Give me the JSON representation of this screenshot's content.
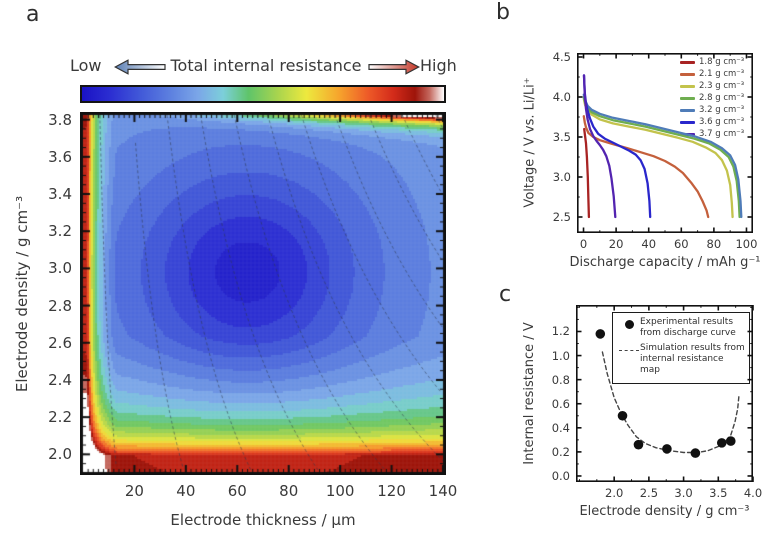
{
  "panel_letters": {
    "a": "a",
    "b": "b",
    "c": "c"
  },
  "colorbar": {
    "low_label": "Low",
    "title": "Total internal resistance",
    "high_label": "High"
  },
  "chart_data": [
    {
      "id": "a",
      "type": "heatmap",
      "xlabel": "Electrode thickness / μm",
      "ylabel": "Electrode density / g cm⁻³",
      "xlim": [
        0,
        140
      ],
      "ylim": [
        1.905,
        3.825
      ],
      "x_ticks": [
        "20",
        "40",
        "60",
        "80",
        "100",
        "120",
        "140"
      ],
      "y_ticks": [
        "3.8",
        "3.6",
        "3.4",
        "3.2",
        "3.0",
        "2.8",
        "2.6",
        "2.4",
        "2.2",
        "2.0"
      ],
      "x_minor_step": 2,
      "y_minor_step": 0.05,
      "value_meaning": "total internal resistance (Low = blue, High = white/red)",
      "optimum_region": {
        "thickness_um": 65,
        "density_g_cm3": 3.0
      },
      "colormap_stops": [
        [
          0.0,
          "#1a12c4"
        ],
        [
          0.08,
          "#2c2fd2"
        ],
        [
          0.16,
          "#4158d8"
        ],
        [
          0.25,
          "#5f83e0"
        ],
        [
          0.32,
          "#7ba6e8"
        ],
        [
          0.39,
          "#7ccfda"
        ],
        [
          0.46,
          "#5fc46a"
        ],
        [
          0.54,
          "#a8d44e"
        ],
        [
          0.62,
          "#ede93e"
        ],
        [
          0.71,
          "#f6a42c"
        ],
        [
          0.79,
          "#ee5a28"
        ],
        [
          0.86,
          "#d32b1a"
        ],
        [
          0.92,
          "#9e140a"
        ],
        [
          0.96,
          "#c4685e"
        ],
        [
          1.0,
          "#ffffff"
        ]
      ],
      "field_model": {
        "base": 0.32,
        "dips": [
          {
            "amp": 0.13,
            "cx": 64,
            "cy": 2.98,
            "sx": 55,
            "sy": 0.75
          },
          {
            "amp": 0.15,
            "cx": 64,
            "cy": 2.98,
            "sx": 26,
            "sy": 0.33
          }
        ],
        "wall_left": {
          "a": 2.6,
          "b": 1.5,
          "c": 0.18,
          "cap": 0.62
        },
        "wall_bottom": {
          "a": 0.11,
          "d0": 1.85,
          "c": 0.14,
          "cap": 0.62
        },
        "top_right": {
          "amp": 0.9,
          "power": 2,
          "decay": 0.04,
          "d_ref": 3.82
        },
        "quant": 0.04
      },
      "iso_lines": {
        "style": "dashed",
        "products_um_gcm3": [
          25,
          75,
          125,
          175,
          225,
          275,
          325,
          375,
          425,
          475,
          525
        ]
      }
    },
    {
      "id": "b",
      "type": "line",
      "xlabel": "Discharge capacity / mAh g⁻¹",
      "ylabel": "Voltage / V vs. Li/Li⁺",
      "xlim": [
        -4,
        104
      ],
      "ylim": [
        2.3,
        4.55
      ],
      "x_ticks": [
        "0",
        "20",
        "40",
        "60",
        "80",
        "100"
      ],
      "y_ticks": [
        "2.5",
        "3.0",
        "3.5",
        "4.0",
        "4.5"
      ],
      "x_minor_step": 10,
      "y_minor_step": 0.25,
      "series": [
        {
          "name": "1.8 g cm⁻³",
          "color": "#a82323",
          "points": [
            [
              0.4,
              3.6
            ],
            [
              0.9,
              3.52
            ],
            [
              1.5,
              3.42
            ],
            [
              2.1,
              3.25
            ],
            [
              2.6,
              3.0
            ],
            [
              3.0,
              2.72
            ],
            [
              3.3,
              2.5
            ]
          ]
        },
        {
          "name": "2.1 g cm⁻³",
          "color": "#c4603c",
          "points": [
            [
              0.2,
              3.76
            ],
            [
              0.8,
              3.68
            ],
            [
              1.5,
              3.62
            ],
            [
              3,
              3.55
            ],
            [
              6,
              3.5
            ],
            [
              10,
              3.46
            ],
            [
              15,
              3.43
            ],
            [
              20,
              3.4
            ],
            [
              27,
              3.36
            ],
            [
              35,
              3.31
            ],
            [
              43,
              3.26
            ],
            [
              50,
              3.2
            ],
            [
              56,
              3.13
            ],
            [
              61,
              3.05
            ],
            [
              66,
              2.93
            ],
            [
              70,
              2.82
            ],
            [
              73,
              2.7
            ],
            [
              75.5,
              2.58
            ],
            [
              76.5,
              2.5
            ]
          ]
        },
        {
          "name": "2.3 g cm⁻³",
          "color": "#c3c34c",
          "points": [
            [
              0.2,
              3.98
            ],
            [
              1,
              3.9
            ],
            [
              2.5,
              3.83
            ],
            [
              5,
              3.78
            ],
            [
              10,
              3.72
            ],
            [
              18,
              3.67
            ],
            [
              28,
              3.63
            ],
            [
              38,
              3.59
            ],
            [
              48,
              3.54
            ],
            [
              58,
              3.49
            ],
            [
              67,
              3.44
            ],
            [
              75,
              3.37
            ],
            [
              81,
              3.3
            ],
            [
              85,
              3.21
            ],
            [
              88,
              3.08
            ],
            [
              90,
              2.9
            ],
            [
              91,
              2.68
            ],
            [
              91.5,
              2.5
            ]
          ]
        },
        {
          "name": "2.8 g cm⁻³",
          "color": "#6fae50",
          "points": [
            [
              0.2,
              4.0
            ],
            [
              1,
              3.93
            ],
            [
              2.5,
              3.86
            ],
            [
              5,
              3.81
            ],
            [
              10,
              3.76
            ],
            [
              18,
              3.71
            ],
            [
              28,
              3.67
            ],
            [
              38,
              3.63
            ],
            [
              48,
              3.58
            ],
            [
              58,
              3.53
            ],
            [
              68,
              3.48
            ],
            [
              77,
              3.42
            ],
            [
              84,
              3.34
            ],
            [
              89,
              3.25
            ],
            [
              92,
              3.13
            ],
            [
              94,
              2.95
            ],
            [
              95.3,
              2.7
            ],
            [
              95.8,
              2.5
            ]
          ]
        },
        {
          "name": "3.2 g cm⁻³",
          "color": "#4f7cb8",
          "points": [
            [
              0.2,
              4.03
            ],
            [
              1,
              3.96
            ],
            [
              2.5,
              3.89
            ],
            [
              5,
              3.84
            ],
            [
              10,
              3.79
            ],
            [
              18,
              3.74
            ],
            [
              28,
              3.7
            ],
            [
              38,
              3.66
            ],
            [
              48,
              3.61
            ],
            [
              58,
              3.56
            ],
            [
              68,
              3.51
            ],
            [
              78,
              3.44
            ],
            [
              85,
              3.36
            ],
            [
              90,
              3.27
            ],
            [
              93,
              3.15
            ],
            [
              95,
              2.97
            ],
            [
              96.3,
              2.7
            ],
            [
              96.8,
              2.5
            ]
          ]
        },
        {
          "name": "3.6 g cm⁻³",
          "color": "#2a27cc",
          "points": [
            [
              0.3,
              4.27
            ],
            [
              0.8,
              4.05
            ],
            [
              1.5,
              3.92
            ],
            [
              2.5,
              3.83
            ],
            [
              4,
              3.73
            ],
            [
              6,
              3.63
            ],
            [
              9,
              3.54
            ],
            [
              13,
              3.48
            ],
            [
              18,
              3.43
            ],
            [
              23,
              3.38
            ],
            [
              28,
              3.33
            ],
            [
              32,
              3.28
            ],
            [
              35,
              3.21
            ],
            [
              37.5,
              3.1
            ],
            [
              39.3,
              2.92
            ],
            [
              40.4,
              2.7
            ],
            [
              40.9,
              2.5
            ]
          ]
        },
        {
          "name": "3.7 g cm⁻³",
          "color": "#5324b0",
          "points": [
            [
              0.3,
              4.27
            ],
            [
              0.8,
              4.02
            ],
            [
              1.5,
              3.85
            ],
            [
              2.5,
              3.72
            ],
            [
              4,
              3.6
            ],
            [
              6,
              3.51
            ],
            [
              8,
              3.45
            ],
            [
              10,
              3.4
            ],
            [
              12,
              3.34
            ],
            [
              14,
              3.26
            ],
            [
              15.8,
              3.14
            ],
            [
              17.2,
              2.98
            ],
            [
              18.5,
              2.76
            ],
            [
              19.5,
              2.5
            ]
          ]
        }
      ]
    },
    {
      "id": "c",
      "type": "scatter",
      "xlabel": "Electrode density / g cm⁻³",
      "ylabel": "Internal resistance / V",
      "xlim": [
        1.45,
        4.0
      ],
      "ylim": [
        -0.05,
        1.42
      ],
      "x_ticks": [
        "2.0",
        "2.5",
        "3.0",
        "3.5",
        "4.0"
      ],
      "y_ticks": [
        "0.0",
        "0.2",
        "0.4",
        "0.6",
        "0.8",
        "1.0",
        "1.2"
      ],
      "x_minor_step": 0.25,
      "y_minor_step": 0.1,
      "experimental": {
        "label_line1": "Experimental results",
        "label_line2": "from discharge curve",
        "points": [
          [
            1.8,
            1.18
          ],
          [
            2.12,
            0.5
          ],
          [
            2.35,
            0.26
          ],
          [
            2.76,
            0.225
          ],
          [
            3.17,
            0.19
          ],
          [
            3.55,
            0.275
          ],
          [
            3.68,
            0.29
          ]
        ]
      },
      "simulation": {
        "label_line1": "Simulation results from",
        "label_line2": "internal resistance map",
        "color": "#444444",
        "points": [
          [
            1.83,
            1.03
          ],
          [
            1.9,
            0.85
          ],
          [
            2.0,
            0.65
          ],
          [
            2.1,
            0.52
          ],
          [
            2.2,
            0.42
          ],
          [
            2.32,
            0.325
          ],
          [
            2.45,
            0.27
          ],
          [
            2.6,
            0.235
          ],
          [
            2.8,
            0.21
          ],
          [
            3.0,
            0.195
          ],
          [
            3.2,
            0.195
          ],
          [
            3.35,
            0.21
          ],
          [
            3.5,
            0.245
          ],
          [
            3.6,
            0.285
          ],
          [
            3.68,
            0.34
          ],
          [
            3.74,
            0.45
          ],
          [
            3.78,
            0.56
          ],
          [
            3.8,
            0.68
          ]
        ]
      }
    }
  ]
}
